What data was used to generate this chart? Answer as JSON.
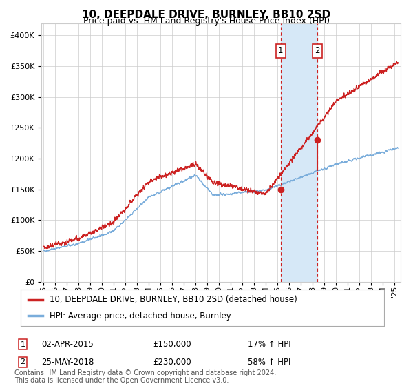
{
  "title": "10, DEEPDALE DRIVE, BURNLEY, BB10 2SD",
  "subtitle": "Price paid vs. HM Land Registry's House Price Index (HPI)",
  "xlim_start": 1994.8,
  "xlim_end": 2025.5,
  "ylim": [
    0,
    420000
  ],
  "yticks": [
    0,
    50000,
    100000,
    150000,
    200000,
    250000,
    300000,
    350000,
    400000
  ],
  "ytick_labels": [
    "£0",
    "£50K",
    "£100K",
    "£150K",
    "£200K",
    "£250K",
    "£300K",
    "£350K",
    "£400K"
  ],
  "sale1_date": 2015.25,
  "sale1_price": 150000,
  "sale1_label": "1",
  "sale2_date": 2018.38,
  "sale2_price": 230000,
  "sale2_label": "2",
  "hpi_line_color": "#7aaddb",
  "price_line_color": "#cc2222",
  "sale_dot_color": "#cc2222",
  "shade_color": "#d6e8f7",
  "vline_color": "#cc2222",
  "grid_color": "#cccccc",
  "bg_color": "#ffffff",
  "legend_line1": "10, DEEPDALE DRIVE, BURNLEY, BB10 2SD (detached house)",
  "legend_line2": "HPI: Average price, detached house, Burnley",
  "sale1_info": [
    "1",
    "02-APR-2015",
    "£150,000",
    "17% ↑ HPI"
  ],
  "sale2_info": [
    "2",
    "25-MAY-2018",
    "£230,000",
    "58% ↑ HPI"
  ],
  "footer": "Contains HM Land Registry data © Crown copyright and database right 2024.\nThis data is licensed under the Open Government Licence v3.0.",
  "title_fontsize": 11,
  "subtitle_fontsize": 9,
  "axis_fontsize": 8,
  "legend_fontsize": 8.5,
  "footer_fontsize": 7
}
